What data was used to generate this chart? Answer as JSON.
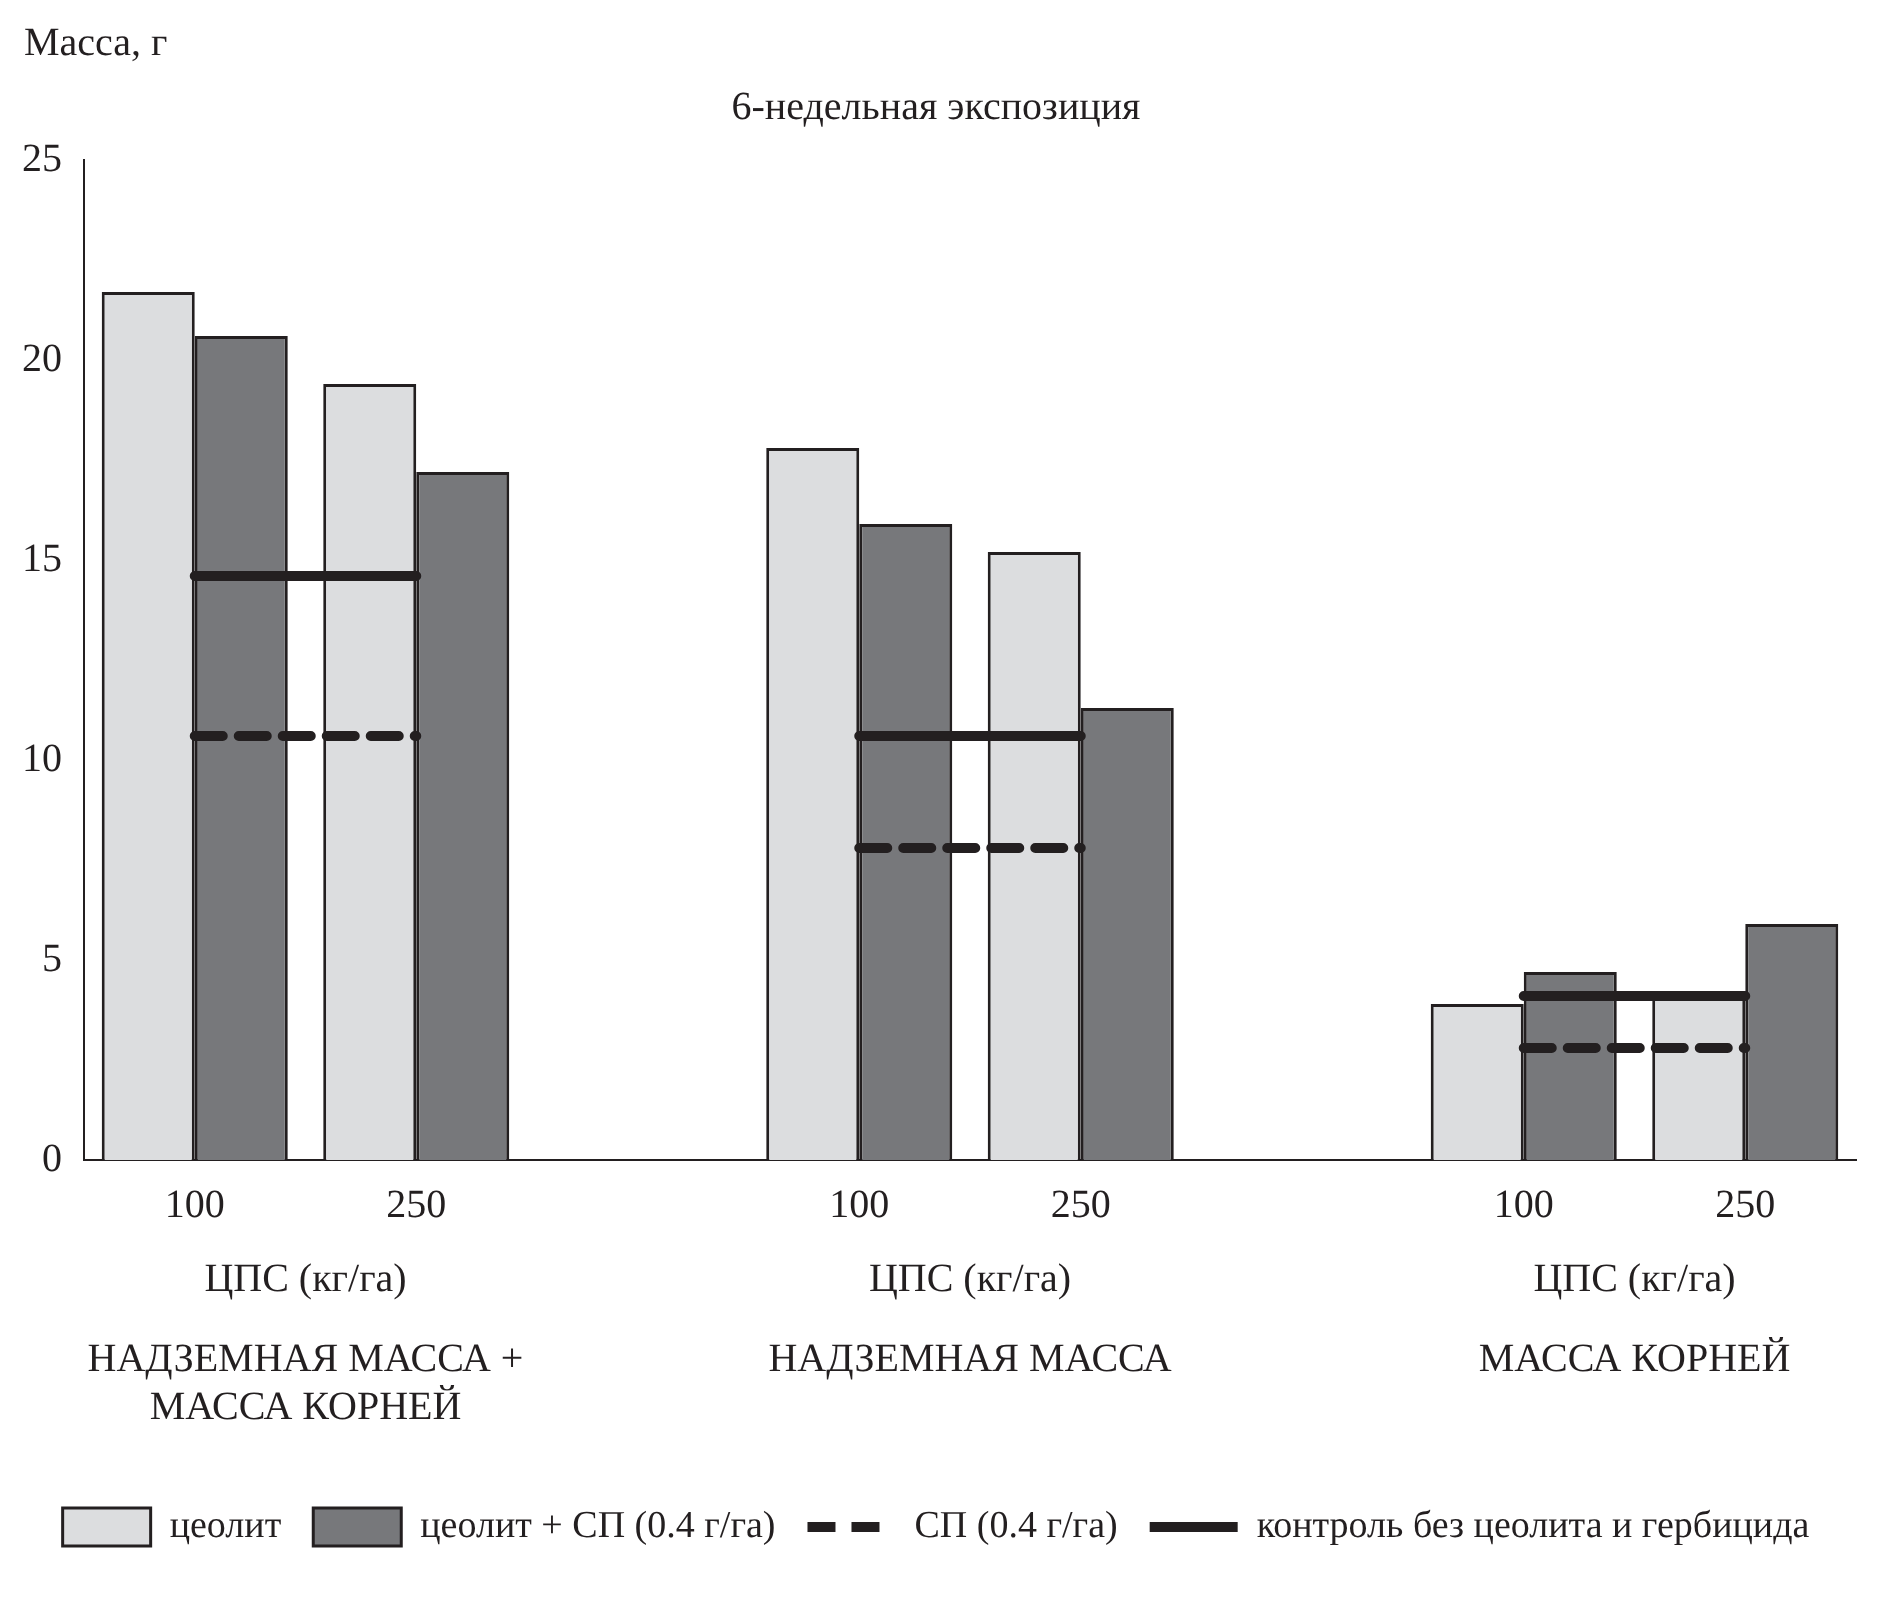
{
  "chart_data": {
    "type": "bar",
    "title": "6-недельная экспозиция",
    "ylabel": "Масса, г",
    "categories": [
      "100",
      "250",
      null,
      "100",
      "250",
      null,
      "100",
      "250"
    ],
    "series": [
      {
        "name": "цеолит",
        "color": "#dcdddf",
        "values": [
          21.7,
          19.4,
          null,
          17.8,
          15.2,
          null,
          3.9,
          4.1
        ]
      },
      {
        "name": "цеолит + СП (0.4 г/га)",
        "color": "#77787b",
        "values": [
          20.6,
          17.2,
          null,
          15.9,
          11.3,
          null,
          4.7,
          5.9
        ]
      },
      {
        "name": "СП (0.4 г/га)",
        "type": "line",
        "color": "#231f20",
        "line_style": "dashed",
        "values": [
          10.6,
          10.6,
          null,
          7.8,
          7.8,
          null,
          2.8,
          2.8
        ]
      },
      {
        "name": "контроль без цеолита и гербицида",
        "type": "line",
        "color": "#231f20",
        "line_style": "solid",
        "values": [
          14.6,
          14.6,
          null,
          10.6,
          10.6,
          null,
          4.1,
          4.1
        ]
      }
    ],
    "ylim": [
      0,
      25
    ],
    "yticks": [
      0,
      5,
      10,
      15,
      20,
      25
    ],
    "grid": false,
    "legend": "bottom",
    "marker": "none",
    "annotations": [
      "ЦПС (кг/га)",
      "НАДЗЕМНАЯ МАССА + МАССА КОРНЕЙ",
      "ЦПС (кг/га)",
      "НАДЗЕМНАЯ МАССА",
      "ЦПС (кг/га)",
      "МАССА КОРНЕЙ"
    ]
  }
}
